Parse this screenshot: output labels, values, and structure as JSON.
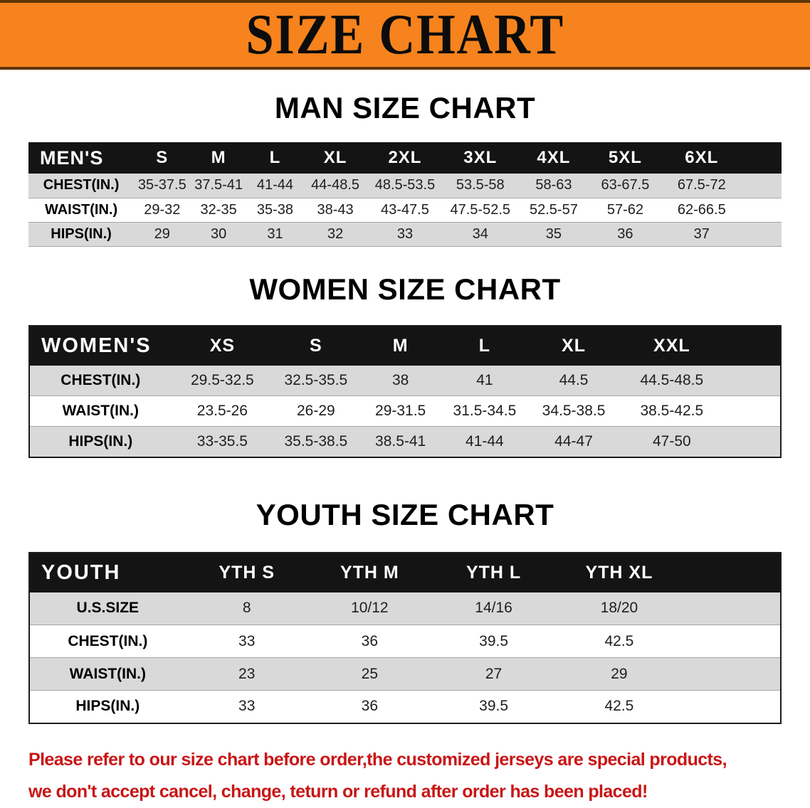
{
  "banner": {
    "title": "SIZE CHART"
  },
  "colors": {
    "banner_orange": "#f6831d",
    "banner_edge": "#5c3407",
    "header_black": "#141414",
    "row_gray": "#d9d9d9",
    "disclaimer_red": "#c81616"
  },
  "men": {
    "heading": "MAN SIZE CHART",
    "table": {
      "header": [
        "MEN'S",
        "S",
        "M",
        "L",
        "XL",
        "2XL",
        "3XL",
        "4XL",
        "5XL",
        "6XL"
      ],
      "rows": [
        [
          "CHEST(IN.)",
          "35-37.5",
          "37.5-41",
          "41-44",
          "44-48.5",
          "48.5-53.5",
          "53.5-58",
          "58-63",
          "63-67.5",
          "67.5-72"
        ],
        [
          "WAIST(IN.)",
          "29-32",
          "32-35",
          "35-38",
          "38-43",
          "43-47.5",
          "47.5-52.5",
          "52.5-57",
          "57-62",
          "62-66.5"
        ],
        [
          "HIPS(IN.)",
          "29",
          "30",
          "31",
          "32",
          "33",
          "34",
          "35",
          "36",
          "37"
        ]
      ]
    }
  },
  "women": {
    "heading": "WOMEN SIZE CHART",
    "table": {
      "header": [
        "WOMEN'S",
        "XS",
        "S",
        "M",
        "L",
        "XL",
        "XXL"
      ],
      "rows": [
        [
          "CHEST(IN.)",
          "29.5-32.5",
          "32.5-35.5",
          "38",
          "41",
          "44.5",
          "44.5-48.5"
        ],
        [
          "WAIST(IN.)",
          "23.5-26",
          "26-29",
          "29-31.5",
          "31.5-34.5",
          "34.5-38.5",
          "38.5-42.5"
        ],
        [
          "HIPS(IN.)",
          "33-35.5",
          "35.5-38.5",
          "38.5-41",
          "41-44",
          "44-47",
          "47-50"
        ]
      ]
    }
  },
  "youth": {
    "heading": "YOUTH SIZE CHART",
    "table": {
      "header": [
        "YOUTH",
        "YTH S",
        "YTH M",
        "YTH L",
        "YTH XL"
      ],
      "rows": [
        [
          "U.S.SIZE",
          "8",
          "10/12",
          "14/16",
          "18/20"
        ],
        [
          "CHEST(IN.)",
          "33",
          "36",
          "39.5",
          "42.5"
        ],
        [
          "WAIST(IN.)",
          "23",
          "25",
          "27",
          "29"
        ],
        [
          "HIPS(IN.)",
          "33",
          "36",
          "39.5",
          "42.5"
        ]
      ]
    }
  },
  "disclaimer": {
    "line1": "Please refer to our size chart before order,the customized jerseys are special products,",
    "line2": "we don't accept cancel, change, teturn or refund after order has been placed!"
  }
}
